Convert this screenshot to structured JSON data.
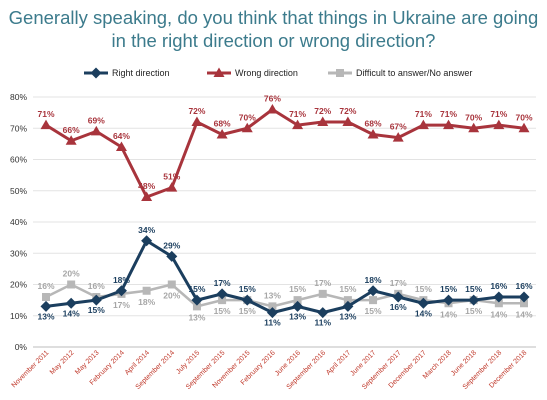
{
  "title": "Generally speaking, do you think that things in Ukraine are going\nin the right direction or wrong direction?",
  "colors": {
    "right": "#1b3e5e",
    "wrong": "#a8343c",
    "difficult": "#b7b7b7",
    "difficult_label": "#a6a6a6",
    "title": "#3c7b8c",
    "axis_label": "#c0392b"
  },
  "chart_data": {
    "type": "line",
    "x": [
      "November 2011",
      "May 2012",
      "May 2013",
      "February 2014",
      "April 2014",
      "September 2014",
      "July 2015",
      "September 2015",
      "November 2015",
      "February 2016",
      "June 2016",
      "September 2016",
      "April 2017",
      "June 2017",
      "September 2017",
      "December 2017",
      "March 2018",
      "June 2018",
      "September 2018",
      "December 2018"
    ],
    "y_ticks": [
      "0%",
      "10%",
      "20%",
      "30%",
      "40%",
      "50%",
      "60%",
      "70%",
      "80%"
    ],
    "ylim": [
      0,
      80
    ],
    "legend_position": "top",
    "series": [
      {
        "name": "Right direction",
        "color_key": "right",
        "marker": "diamond",
        "values": [
          13,
          14,
          15,
          18,
          34,
          29,
          15,
          17,
          15,
          11,
          13,
          11,
          13,
          18,
          16,
          14,
          15,
          15,
          16,
          16
        ],
        "labels": [
          "13%",
          "14%",
          "15%",
          "18%",
          "34%",
          "29%",
          "15%",
          "17%",
          "15%",
          "11%",
          "13%",
          "11%",
          "13%",
          "18%",
          "16%",
          "14%",
          "15%",
          "15%",
          "16%",
          "16%"
        ]
      },
      {
        "name": "Wrong direction",
        "color_key": "wrong",
        "marker": "triangle",
        "values": [
          71,
          66,
          69,
          64,
          48,
          51,
          72,
          68,
          70,
          76,
          71,
          72,
          72,
          68,
          67,
          71,
          71,
          70,
          71,
          70
        ],
        "labels": [
          "71%",
          "66%",
          "69%",
          "64%",
          "48%",
          "51%",
          "72%",
          "68%",
          "70%",
          "76%",
          "71%",
          "72%",
          "72%",
          "68%",
          "67%",
          "71%",
          "71%",
          "70%",
          "71%",
          "70%"
        ]
      },
      {
        "name": "Difficult to answer/No answer",
        "color_key": "difficult",
        "marker": "square",
        "values": [
          16,
          20,
          16,
          17,
          18,
          20,
          13,
          15,
          15,
          13,
          15,
          17,
          15,
          15,
          17,
          15,
          14,
          15,
          14,
          14
        ],
        "labels": [
          "16%",
          "20%",
          "16%",
          "17%",
          "18%",
          "20%",
          "13%",
          "15%",
          "15%",
          "13%",
          "15%",
          "17%",
          "15%",
          "15%",
          "17%",
          "15%",
          "14%",
          "15%",
          "14%",
          "14%"
        ]
      }
    ]
  }
}
